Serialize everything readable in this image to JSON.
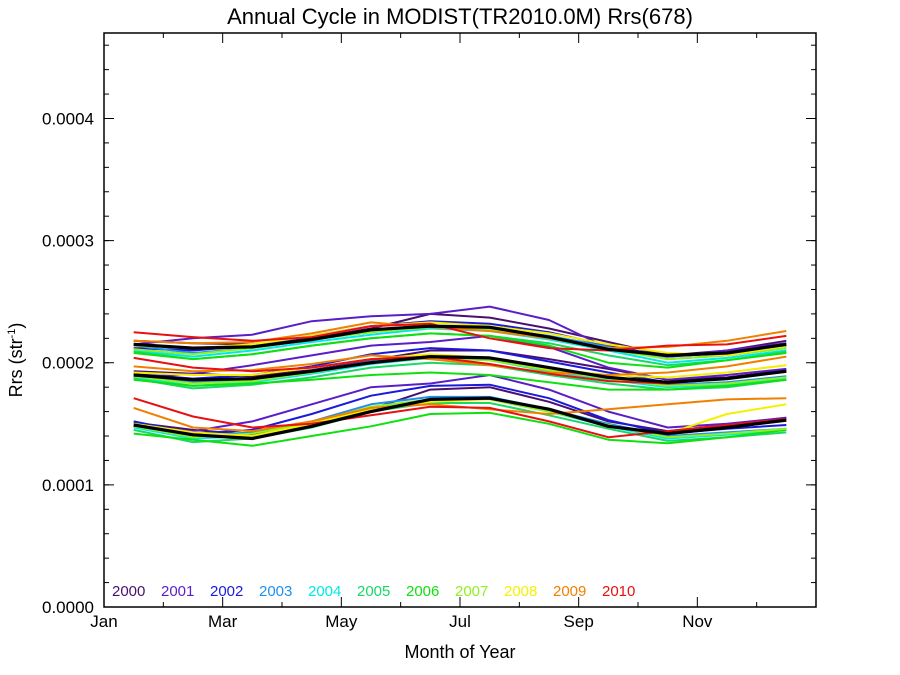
{
  "chart_data": {
    "type": "line",
    "title": "Annual Cycle in MODIST(TR2010.0M) Rrs(678)",
    "xlabel": "Month of Year",
    "ylabel": "Rrs (str",
    "ylabel_sup": "-1",
    "ylabel_close": ")",
    "xlim": [
      0,
      12
    ],
    "ylim": [
      0,
      0.00047
    ],
    "x_ticks": [
      {
        "x": 0,
        "label": "Jan"
      },
      {
        "x": 2,
        "label": "Mar"
      },
      {
        "x": 4,
        "label": "May"
      },
      {
        "x": 6,
        "label": "Jul"
      },
      {
        "x": 8,
        "label": "Sep"
      },
      {
        "x": 10,
        "label": "Nov"
      }
    ],
    "y_ticks": [
      {
        "y": 0.0,
        "label": "0.0000"
      },
      {
        "y": 0.0001,
        "label": "0.0001"
      },
      {
        "y": 0.0002,
        "label": "0.0002"
      },
      {
        "y": 0.0003,
        "label": "0.0003"
      },
      {
        "y": 0.0004,
        "label": "0.0004"
      }
    ],
    "x": [
      0.5,
      1.5,
      2.5,
      3.5,
      4.5,
      5.5,
      6.5,
      7.5,
      8.5,
      9.5,
      10.5,
      11.5
    ],
    "grid": false,
    "legend_position": "bottom-left",
    "series": [
      {
        "name": "2000",
        "color": "#4b0f6e",
        "bands": [
          [
            0.000218,
            0.000216,
            0.000215,
            0.00022,
            0.000228,
            0.00024,
            0.000237,
            0.000228,
            0.000217,
            0.000206,
            0.00021,
            0.000218
          ],
          [
            0.000193,
            0.000191,
            0.000189,
            0.000194,
            0.000202,
            0.00021,
            0.00021,
            0.000203,
            0.000195,
            0.000186,
            0.000188,
            0.000194
          ],
          [
            0.000151,
            0.000145,
            0.000141,
            0.000148,
            0.000162,
            0.000178,
            0.00018,
            0.000168,
            0.000152,
            0.000144,
            0.000149,
            0.000155
          ]
        ]
      },
      {
        "name": "2001",
        "color": "#5a1ec8",
        "bands": [
          [
            0.000215,
            0.00022,
            0.000223,
            0.000234,
            0.000238,
            0.00024,
            0.000246,
            0.000235,
            0.000212,
            0.000205,
            0.00021,
            0.000216
          ],
          [
            0.000188,
            0.000191,
            0.000198,
            0.000206,
            0.000214,
            0.000217,
            0.000222,
            0.000213,
            0.000196,
            0.000186,
            0.00019,
            0.000195
          ],
          [
            0.000148,
            0.000144,
            0.000152,
            0.000166,
            0.00018,
            0.000183,
            0.00019,
            0.000178,
            0.00016,
            0.000147,
            0.00015,
            0.000155
          ]
        ]
      },
      {
        "name": "2002",
        "color": "#1a1adc",
        "bands": [
          [
            0.000212,
            0.00021,
            0.000214,
            0.000222,
            0.00023,
            0.000234,
            0.000232,
            0.000225,
            0.000214,
            0.000205,
            0.000208,
            0.000214
          ],
          [
            0.000191,
            0.000187,
            0.00019,
            0.000197,
            0.000207,
            0.000212,
            0.00021,
            0.000201,
            0.000192,
            0.000184,
            0.000187,
            0.000193
          ],
          [
            0.000152,
            0.000142,
            0.000145,
            0.000158,
            0.000173,
            0.000181,
            0.000182,
            0.000171,
            0.000153,
            0.000142,
            0.000146,
            0.000149
          ]
        ]
      },
      {
        "name": "2003",
        "color": "#1e90f0",
        "bands": [
          [
            0.000214,
            0.000208,
            0.000212,
            0.000219,
            0.000225,
            0.00023,
            0.000228,
            0.000222,
            0.000213,
            0.000203,
            0.000206,
            0.000212
          ],
          [
            0.00019,
            0.000184,
            0.000186,
            0.000193,
            0.000201,
            0.000206,
            0.000204,
            0.000196,
            0.000188,
            0.000182,
            0.000184,
            0.000189
          ],
          [
            0.000149,
            0.00014,
            0.000143,
            0.000152,
            0.000166,
            0.000172,
            0.000172,
            0.000162,
            0.00015,
            0.00014,
            0.000143,
            0.000146
          ]
        ]
      },
      {
        "name": "2004",
        "color": "#00e8e8",
        "bands": [
          [
            0.00021,
            0.000205,
            0.00021,
            0.000217,
            0.000223,
            0.000228,
            0.000226,
            0.000219,
            0.00021,
            0.0002,
            0.000204,
            0.00021
          ],
          [
            0.000188,
            0.000181,
            0.000184,
            0.000191,
            0.000199,
            0.000204,
            0.000202,
            0.000193,
            0.000186,
            0.00018,
            0.000182,
            0.000187
          ],
          [
            0.000147,
            0.000138,
            0.00014,
            0.00015,
            0.000163,
            0.00017,
            0.00017,
            0.00016,
            0.000148,
            0.000138,
            0.000141,
            0.000145
          ]
        ]
      },
      {
        "name": "2005",
        "color": "#18d868",
        "bands": [
          [
            0.000209,
            0.000203,
            0.000207,
            0.000214,
            0.00022,
            0.000224,
            0.000222,
            0.000216,
            0.000206,
            0.000198,
            0.000202,
            0.000209
          ],
          [
            0.000187,
            0.000179,
            0.000182,
            0.000188,
            0.000196,
            0.0002,
            0.000198,
            0.00019,
            0.000183,
            0.000178,
            0.00018,
            0.000186
          ],
          [
            0.000145,
            0.000135,
            0.000138,
            0.000147,
            0.00016,
            0.000167,
            0.000167,
            0.000157,
            0.000146,
            0.000136,
            0.000139,
            0.000143
          ]
        ]
      },
      {
        "name": "2006",
        "color": "#10e010",
        "bands": [
          [
            0.000208,
            0.000203,
            0.000207,
            0.000214,
            0.00022,
            0.000224,
            0.000222,
            0.000214,
            0.0002,
            0.000196,
            0.000202,
            0.000208
          ],
          [
            0.000186,
            0.000181,
            0.000183,
            0.000186,
            0.00019,
            0.000192,
            0.00019,
            0.000184,
            0.000178,
            0.000178,
            0.000181,
            0.000186
          ],
          [
            0.000142,
            0.000137,
            0.000132,
            0.00014,
            0.000148,
            0.000158,
            0.000159,
            0.00015,
            0.000137,
            0.000134,
            0.000139,
            0.000145
          ]
        ]
      },
      {
        "name": "2007",
        "color": "#90f020",
        "bands": [
          [
            0.000211,
            0.000207,
            0.000212,
            0.000219,
            0.000225,
            0.000229,
            0.000227,
            0.00022,
            0.000211,
            0.000203,
            0.000206,
            0.000212
          ],
          [
            0.000189,
            0.000183,
            0.000185,
            0.000192,
            0.0002,
            0.000204,
            0.000202,
            0.000194,
            0.000187,
            0.000181,
            0.000183,
            0.000188
          ],
          [
            0.000148,
            0.000139,
            0.000142,
            0.000151,
            0.000164,
            0.00017,
            0.00017,
            0.00016,
            0.000149,
            0.000139,
            0.000142,
            0.000146
          ]
        ]
      },
      {
        "name": "2008",
        "color": "#f5f000",
        "bands": [
          [
            0.000214,
            0.000212,
            0.000215,
            0.000222,
            0.00023,
            0.000233,
            0.00023,
            0.000224,
            0.000215,
            0.000208,
            0.000206,
            0.000214
          ],
          [
            0.000192,
            0.00019,
            0.00019,
            0.000196,
            0.000203,
            0.000207,
            0.000204,
            0.000195,
            0.00019,
            0.000188,
            0.000192,
            0.000198
          ],
          [
            0.00015,
            0.000143,
            0.00014,
            0.00015,
            0.000162,
            0.000168,
            0.00017,
            0.000162,
            0.000148,
            0.000142,
            0.000158,
            0.000166
          ]
        ]
      },
      {
        "name": "2009",
        "color": "#f08000",
        "bands": [
          [
            0.000218,
            0.000216,
            0.000217,
            0.000224,
            0.000233,
            0.000229,
            0.000226,
            0.00022,
            0.000212,
            0.000213,
            0.000218,
            0.000226
          ],
          [
            0.000197,
            0.000193,
            0.000194,
            0.000199,
            0.000206,
            0.000203,
            0.000198,
            0.000192,
            0.00019,
            0.000192,
            0.000197,
            0.000205
          ],
          [
            0.000163,
            0.000147,
            0.000144,
            0.000152,
            0.000163,
            0.000166,
            0.000162,
            0.000158,
            0.000162,
            0.000166,
            0.00017,
            0.000171
          ]
        ]
      },
      {
        "name": "2010",
        "color": "#e81010",
        "bands": [
          [
            0.000225,
            0.000221,
            0.000218,
            0.000221,
            0.00023,
            0.000232,
            0.00022,
            0.000212,
            0.00021,
            0.000214,
            0.000215,
            0.000222
          ],
          [
            0.000204,
            0.000196,
            0.000193,
            0.000196,
            0.000203,
            0.000205,
            0.000199,
            0.000191,
            0.000185,
            0.000183,
            0.000187,
            0.000193
          ],
          [
            0.000171,
            0.000156,
            0.000147,
            0.00015,
            0.000157,
            0.000164,
            0.000163,
            0.000152,
            0.000139,
            0.000144,
            0.000149,
            0.000154
          ]
        ]
      },
      {
        "name": "",
        "color": "#000000",
        "bands": [
          [
            0.000215,
            0.000212,
            0.000213,
            0.000219,
            0.000227,
            0.00023,
            0.000229,
            0.000221,
            0.000211,
            0.000206,
            0.000208,
            0.000215
          ],
          [
            0.00019,
            0.000186,
            0.000187,
            0.000193,
            0.0002,
            0.000205,
            0.000204,
            0.000196,
            0.000188,
            0.000184,
            0.000187,
            0.000193
          ],
          [
            0.000149,
            0.000141,
            0.000138,
            0.000148,
            0.00016,
            0.00017,
            0.000171,
            0.000162,
            0.000148,
            0.000142,
            0.000147,
            0.000153
          ]
        ]
      }
    ]
  }
}
